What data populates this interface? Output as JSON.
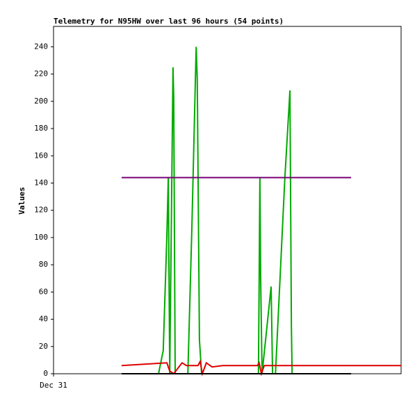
{
  "chart_data": {
    "type": "line",
    "title": "Telemetry for N95HW over last 96 hours (54 points)",
    "y_label": "Values",
    "xlim": [
      0,
      96
    ],
    "xticks": [
      {
        "value": 0,
        "label": "Dec 31"
      }
    ],
    "ylim": [
      0,
      255
    ],
    "yticks": [
      0,
      20,
      40,
      60,
      80,
      100,
      120,
      140,
      160,
      180,
      200,
      220,
      240
    ],
    "series": [
      {
        "color": "#00aa00",
        "x": [
          29.0,
          30.3,
          31.3,
          31.7,
          32.1,
          33.0,
          33.2,
          33.6,
          37.1,
          38.2,
          39.4,
          39.7,
          40.3,
          40.9,
          56.6,
          57.0,
          57.2,
          57.6,
          60.1,
          60.5,
          61.3,
          63.9,
          65.3,
          65.7,
          65.9
        ],
        "values": [
          0,
          17,
          101,
          144,
          0,
          225,
          203,
          0,
          0,
          106,
          240,
          216,
          25,
          0,
          0,
          144,
          72,
          0,
          64,
          0,
          0,
          144,
          208,
          35,
          0
        ]
      },
      {
        "color": "#dd0000",
        "x": [
          18.8,
          31.3,
          32.1,
          33.2,
          35.5,
          36.7,
          39.9,
          40.5,
          41.1,
          42.2,
          43.8,
          46.7,
          51.5,
          56.3,
          56.8,
          57.4,
          58.2,
          96
        ],
        "values": [
          6,
          8,
          2,
          0,
          8,
          6,
          6,
          9,
          0,
          8,
          5,
          6,
          6,
          6,
          8,
          0,
          6,
          6
        ]
      },
      {
        "color": "#770077",
        "x": [
          18.8,
          82.2
        ],
        "values": [
          144,
          144
        ]
      },
      {
        "color": "#000000",
        "x": [
          18.8,
          82.2
        ],
        "values": [
          0,
          0
        ]
      }
    ]
  }
}
